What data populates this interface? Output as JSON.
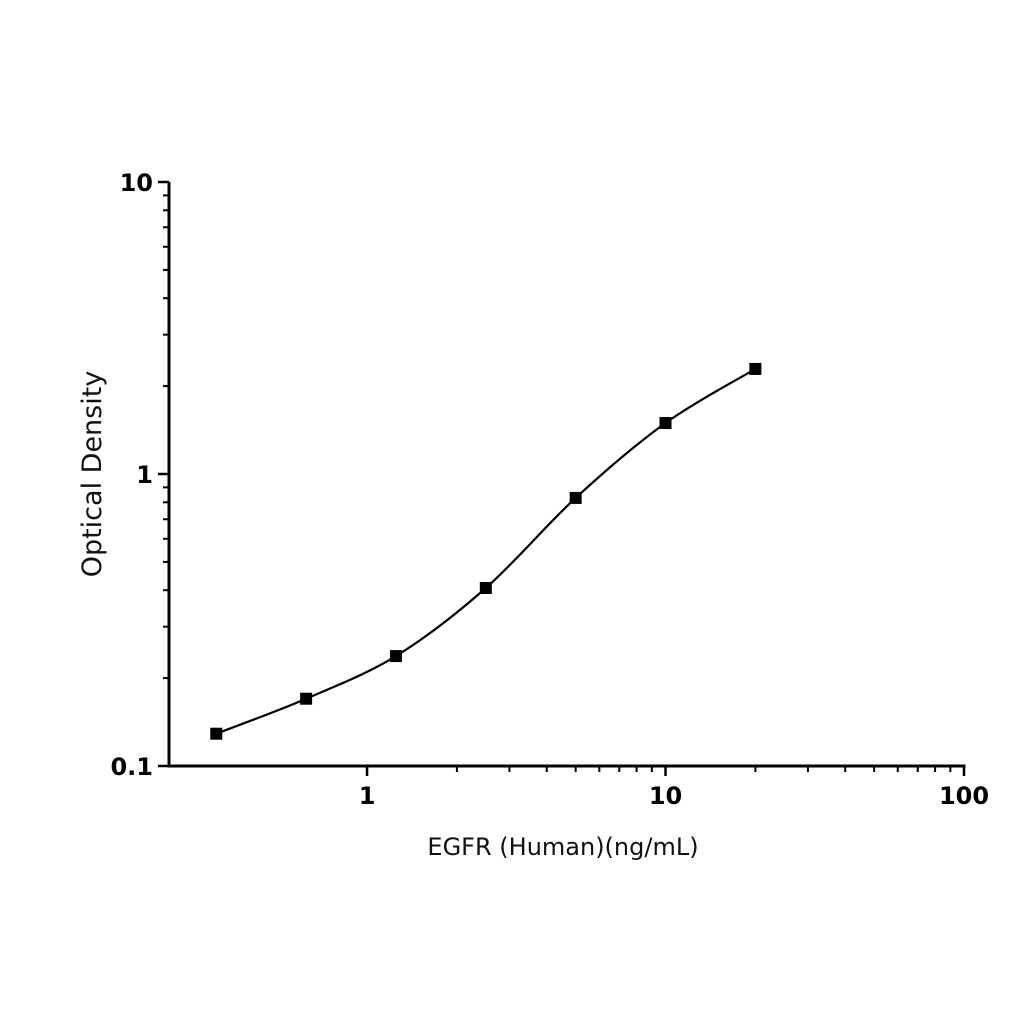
{
  "chart_data": {
    "type": "scatter",
    "title": "",
    "xlabel": "EGFR (Human)(ng/mL)",
    "ylabel": "Optical Density",
    "xscale": "log",
    "yscale": "log",
    "xlim": [
      0.217,
      100
    ],
    "ylim": [
      0.1,
      10
    ],
    "xticks": [
      {
        "value": 1,
        "label": "1"
      },
      {
        "value": 10,
        "label": "10"
      },
      {
        "value": 100,
        "label": "100"
      }
    ],
    "yticks": [
      {
        "value": 0.1,
        "label": "0.1"
      },
      {
        "value": 1,
        "label": "1"
      },
      {
        "value": 10,
        "label": "10"
      }
    ],
    "grid": false,
    "legend": "none",
    "marker": "square",
    "fit_curve": true,
    "color": "#000000",
    "series": [
      {
        "x": [
          0.3125,
          0.625,
          1.25,
          2.5,
          5,
          10,
          20
        ],
        "y": [
          0.129,
          0.17,
          0.238,
          0.407,
          0.828,
          1.495,
          2.29
        ]
      }
    ]
  }
}
